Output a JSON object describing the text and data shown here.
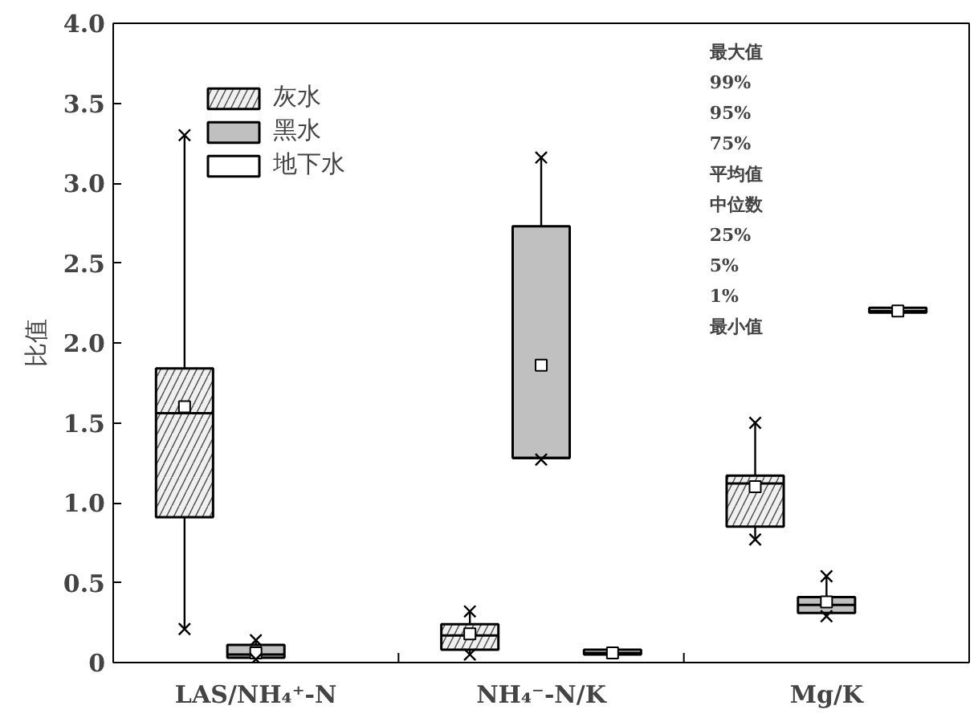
{
  "chart_data": {
    "type": "box",
    "ylabel": "比值",
    "categories": [
      "LAS/NH₄⁺-N",
      "NH₄⁻-N/K",
      "Mg/K"
    ],
    "ylim": [
      0,
      4.0
    ],
    "yticks": [
      0,
      {
        "value": 0.5,
        "label": "0.5"
      },
      {
        "value": 1,
        "label": "1.0"
      },
      1.5,
      {
        "value": 2,
        "label": "2.0"
      },
      2.5,
      {
        "value": 3,
        "label": "3.0"
      },
      3.5,
      {
        "value": 4,
        "label": "4.0"
      }
    ],
    "legend": "top left",
    "grid": false,
    "annotations": [
      "最大值",
      "99%",
      "95%",
      "75%",
      "平均值",
      "中位数",
      "25%",
      "5%",
      "1%",
      "最小值"
    ],
    "series": [
      {
        "name": "灰水",
        "color": "#f0f0f0",
        "boxes": [
          {
            "low": 0.21,
            "q1": 0.91,
            "median": 1.56,
            "q3": 1.84,
            "high": 3.3,
            "mean": 1.6,
            "outliers": [
              0.21,
              3.3
            ]
          },
          {
            "low": 0.05,
            "q1": 0.08,
            "median": 0.17,
            "q3": 0.24,
            "high": 0.32,
            "mean": 0.18,
            "outliers": [
              0.05,
              0.32
            ]
          },
          {
            "low": 0.77,
            "q1": 0.85,
            "median": 1.12,
            "q3": 1.17,
            "high": 1.5,
            "mean": 1.1,
            "outliers": [
              0.77,
              1.5
            ]
          }
        ]
      },
      {
        "name": "黑水",
        "color": "#c0c0c0",
        "boxes": [
          {
            "low": 0.02,
            "q1": 0.03,
            "median": 0.05,
            "q3": 0.11,
            "high": 0.14,
            "mean": 0.06,
            "outliers": [
              0.02,
              0.14
            ]
          },
          {
            "low": 1.27,
            "q1": 1.28,
            "median": 1.28,
            "q3": 2.73,
            "high": 3.16,
            "mean": 1.86,
            "outliers": [
              1.27,
              3.16
            ]
          },
          {
            "low": 0.29,
            "q1": 0.31,
            "median": 0.36,
            "q3": 0.41,
            "high": 0.54,
            "mean": 0.38,
            "outliers": [
              0.29,
              0.54
            ]
          }
        ]
      },
      {
        "name": "地下水",
        "color": "#ffffff",
        "boxes": [
          null,
          {
            "low": 0.05,
            "q1": 0.05,
            "median": 0.06,
            "q3": 0.08,
            "high": 0.08,
            "mean": 0.06
          },
          {
            "low": 2.19,
            "q1": 2.19,
            "median": 2.2,
            "q3": 2.22,
            "high": 2.22,
            "mean": 2.2
          }
        ]
      }
    ]
  }
}
